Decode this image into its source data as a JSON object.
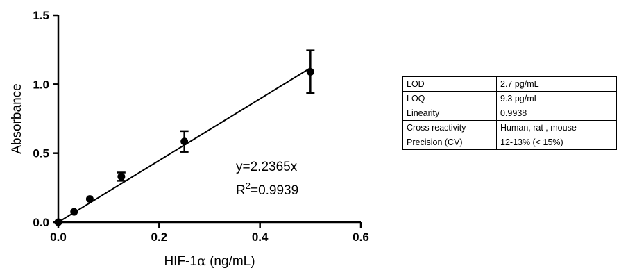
{
  "chart_data": {
    "type": "scatter",
    "xlabel_main": "HIF-1",
    "xlabel_greek": "α",
    "xlabel_unit": " (ng/mL)",
    "ylabel": "Absorbance",
    "xlim": [
      0.0,
      0.6
    ],
    "ylim": [
      0.0,
      1.5
    ],
    "xticks": [
      "0.0",
      "0.2",
      "0.4",
      "0.6"
    ],
    "yticks": [
      "0.0",
      "0.5",
      "1.0",
      "1.5"
    ],
    "points": [
      {
        "x": 0.0,
        "y": 0.0,
        "err": 0.0
      },
      {
        "x": 0.03125,
        "y": 0.075,
        "err": 0.0
      },
      {
        "x": 0.0625,
        "y": 0.168,
        "err": 0.0
      },
      {
        "x": 0.125,
        "y": 0.33,
        "err": 0.03
      },
      {
        "x": 0.25,
        "y": 0.585,
        "err": 0.075
      },
      {
        "x": 0.5,
        "y": 1.09,
        "err": 0.155
      }
    ],
    "fit": {
      "slope": 2.2365,
      "x_range": [
        0.0,
        0.5
      ]
    },
    "equation": "y=2.2365x",
    "r2_prefix": "R",
    "r2_sup": "2",
    "r2_value": "=0.9939",
    "grid": false
  },
  "table": {
    "rows": [
      {
        "label": "LOD",
        "value": "2.7 pg/mL"
      },
      {
        "label": "LOQ",
        "value": "9.3 pg/mL"
      },
      {
        "label": "Linearity",
        "value": "0.9938"
      },
      {
        "label": "Cross reactivity",
        "value": "Human, rat , mouse"
      },
      {
        "label": "Precision (CV)",
        "value": "12-13%  (< 15%)"
      }
    ]
  }
}
